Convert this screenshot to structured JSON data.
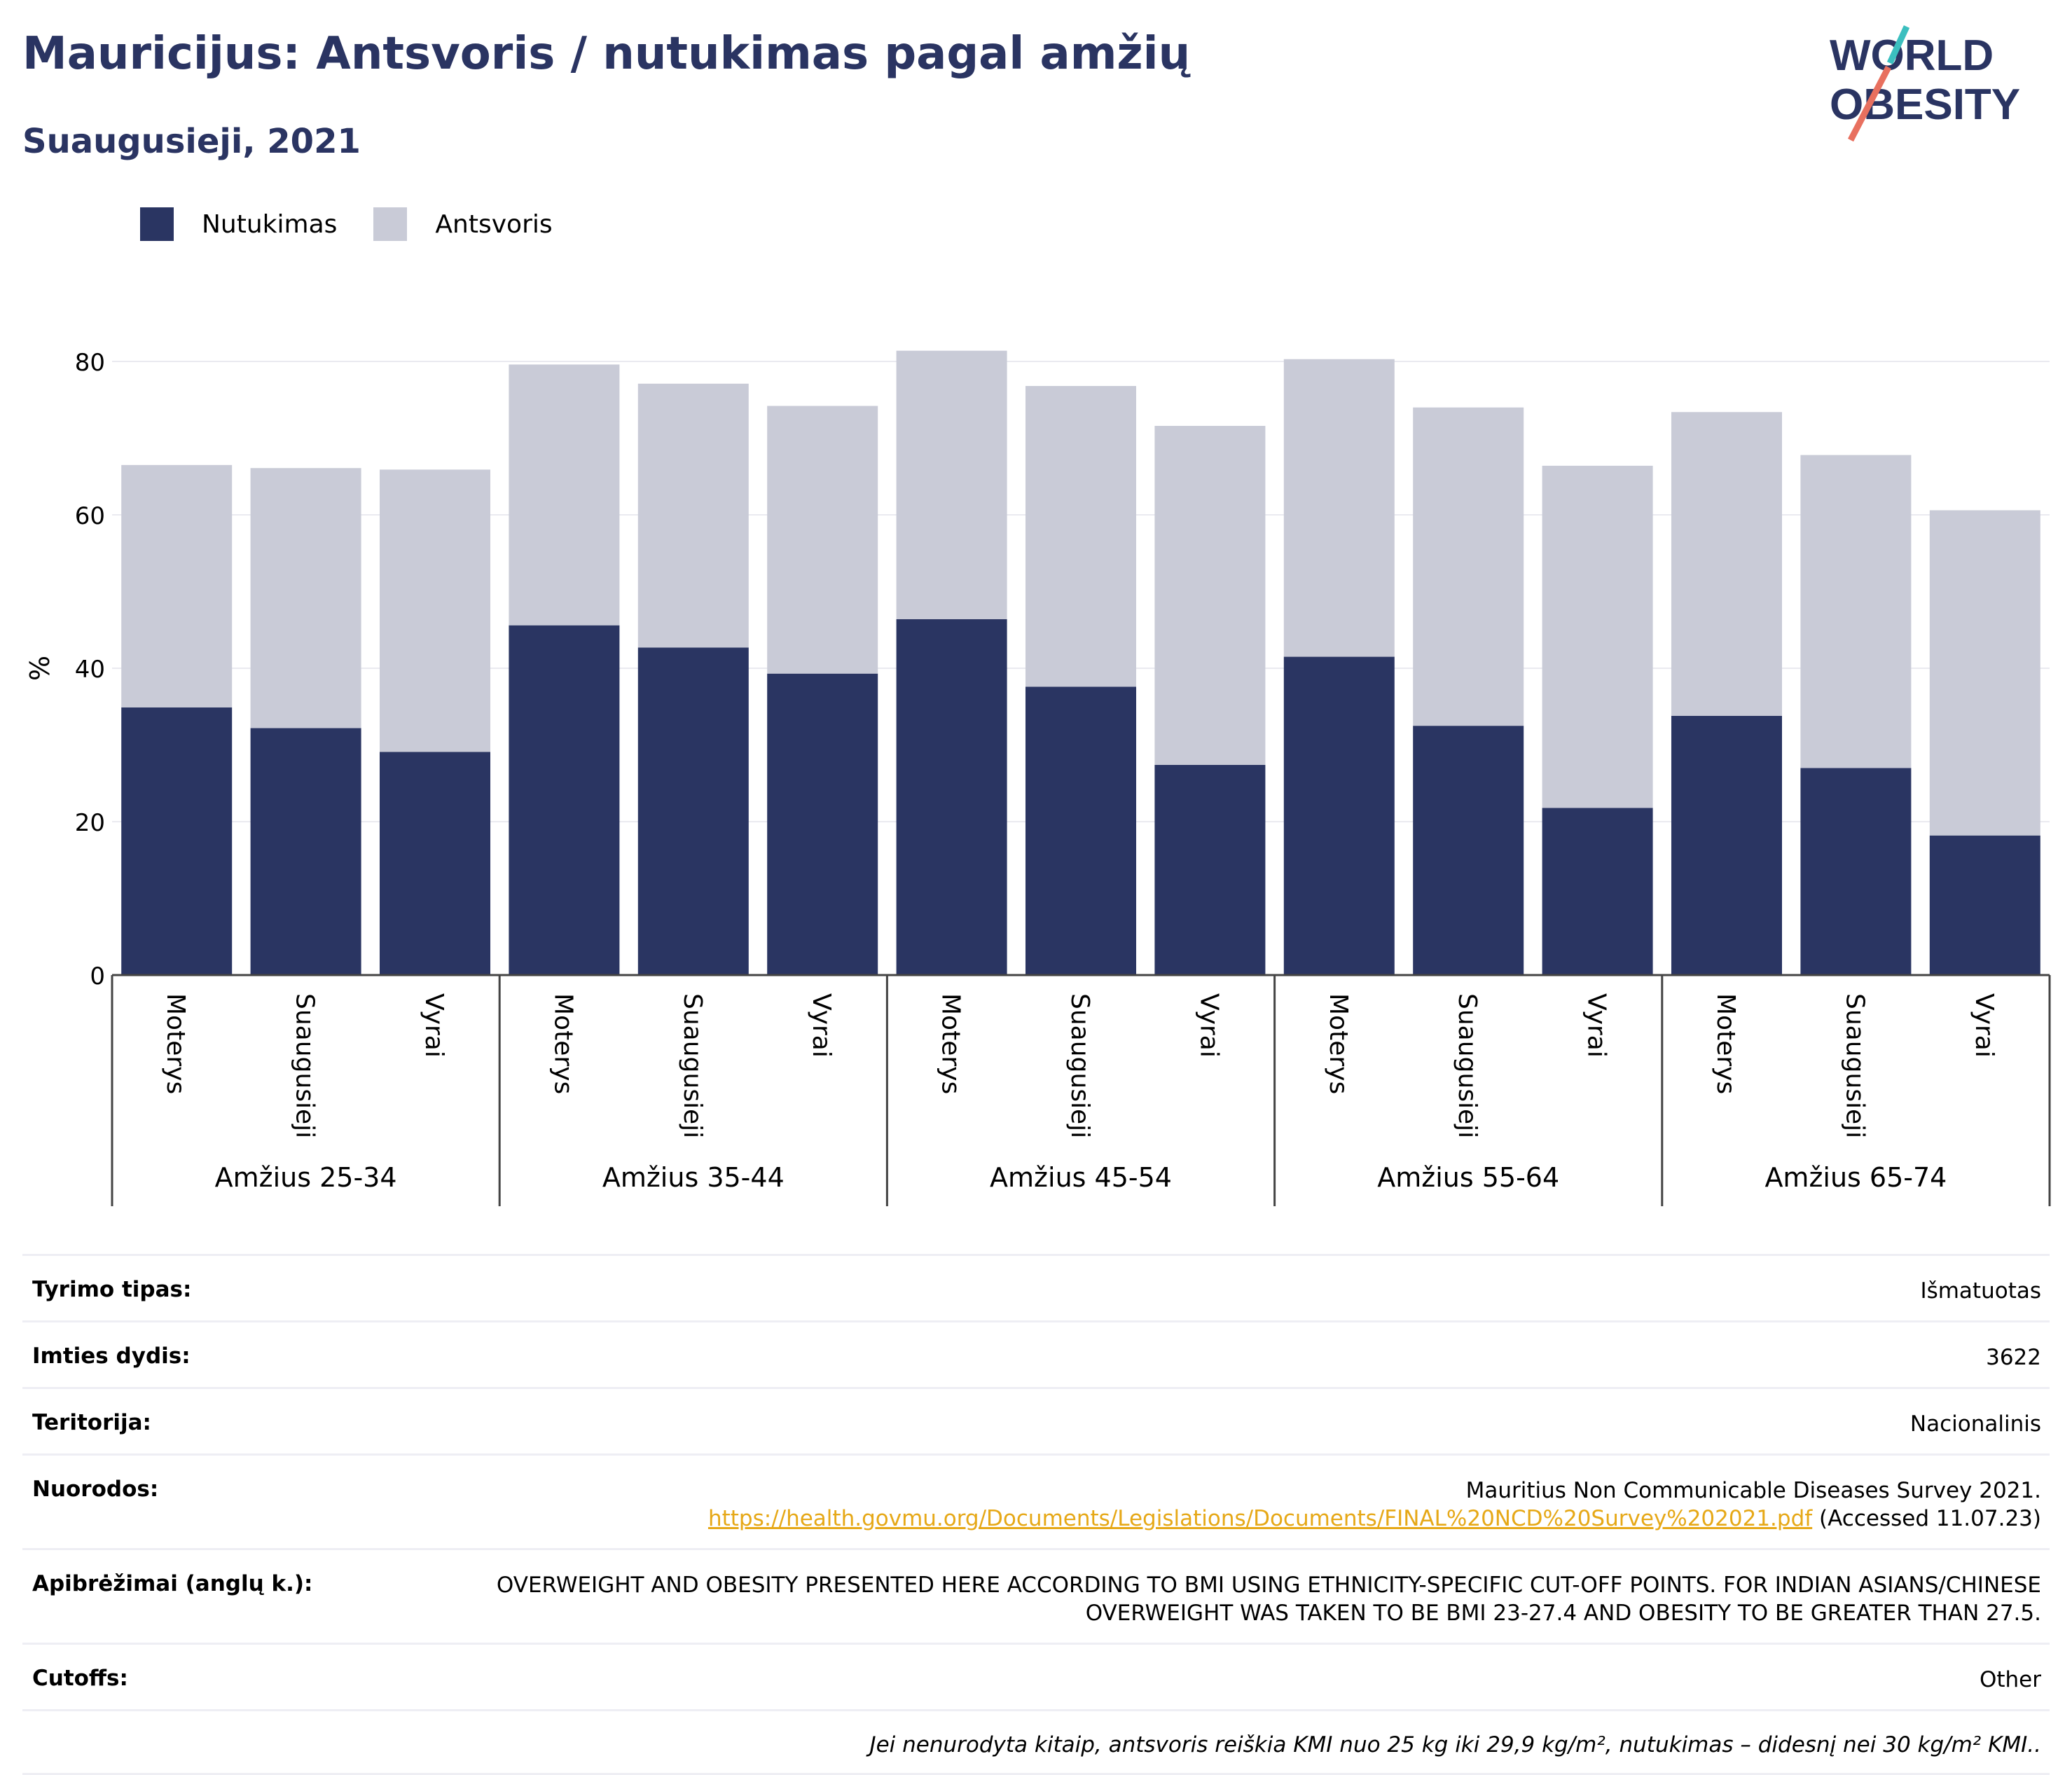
{
  "header": {
    "title": "Mauricijus: Antsvoris / nutukimas pagal amžių",
    "subtitle": "Suaugusieji, 2021",
    "logo_line1": "WORLD",
    "logo_line2": "OBESITY"
  },
  "legend": {
    "obesity_label": "Nutukimas",
    "overweight_label": "Antsvoris"
  },
  "colors": {
    "obesity": "#2a3562",
    "overweight": "#c9cbd7",
    "accent_teal": "#3bbfbf",
    "accent_coral": "#e8705f"
  },
  "chart_data": {
    "type": "bar",
    "stacked": true,
    "ylabel": "%",
    "ylim": [
      0,
      85
    ],
    "yticks": [
      0,
      20,
      40,
      60,
      80
    ],
    "grid": true,
    "legend_position": "top-left",
    "groups": [
      {
        "label": "Amžius 25-34",
        "categories": [
          "Moterys",
          "Suaugusieji",
          "Vyrai"
        ]
      },
      {
        "label": "Amžius 35-44",
        "categories": [
          "Moterys",
          "Suaugusieji",
          "Vyrai"
        ]
      },
      {
        "label": "Amžius 45-54",
        "categories": [
          "Moterys",
          "Suaugusieji",
          "Vyrai"
        ]
      },
      {
        "label": "Amžius 55-64",
        "categories": [
          "Moterys",
          "Suaugusieji",
          "Vyrai"
        ]
      },
      {
        "label": "Amžius 65-74",
        "categories": [
          "Moterys",
          "Suaugusieji",
          "Vyrai"
        ]
      }
    ],
    "series": [
      {
        "name": "Nutukimas",
        "values": [
          34.9,
          32.2,
          29.1,
          45.6,
          42.7,
          39.3,
          46.4,
          37.6,
          27.4,
          41.5,
          32.5,
          21.8,
          33.8,
          27.0,
          18.2
        ]
      },
      {
        "name": "Antsvoris",
        "values": [
          31.6,
          33.9,
          36.8,
          34.0,
          34.4,
          34.9,
          35.0,
          39.2,
          44.2,
          38.8,
          41.5,
          44.6,
          39.6,
          40.8,
          42.4
        ]
      }
    ]
  },
  "info": {
    "rows": [
      {
        "key": "Tyrimo tipas:",
        "value": "Išmatuotas"
      },
      {
        "key": "Imties dydis:",
        "value": "3622"
      },
      {
        "key": "Teritorija:",
        "value": "Nacionalinis"
      }
    ],
    "references_key": "Nuorodos:",
    "references_text": "Mauritius Non Communicable Diseases Survey 2021.",
    "references_url": "https://health.govmu.org/Documents/Legislations/Documents/FINAL%20NCD%20Survey%202021.pdf",
    "references_accessed": "(Accessed 11.07.23)",
    "definitions_key": "Apibrėžimai (anglų k.):",
    "definitions_value": "OVERWEIGHT AND OBESITY PRESENTED HERE ACCORDING TO BMI USING ETHNICITY-SPECIFIC CUT-OFF POINTS. FOR INDIAN ASIANS/CHINESE OVERWEIGHT WAS TAKEN TO BE BMI 23-27.4 AND OBESITY TO BE GREATER THAN 27.5.",
    "cutoffs_key": "Cutoffs:",
    "cutoffs_value": "Other",
    "footnote": "Jei nenurodyta kitaip, antsvoris reiškia KMI nuo 25 kg iki 29,9 kg/m², nutukimas – didesnį nei 30 kg/m² KMI.."
  }
}
